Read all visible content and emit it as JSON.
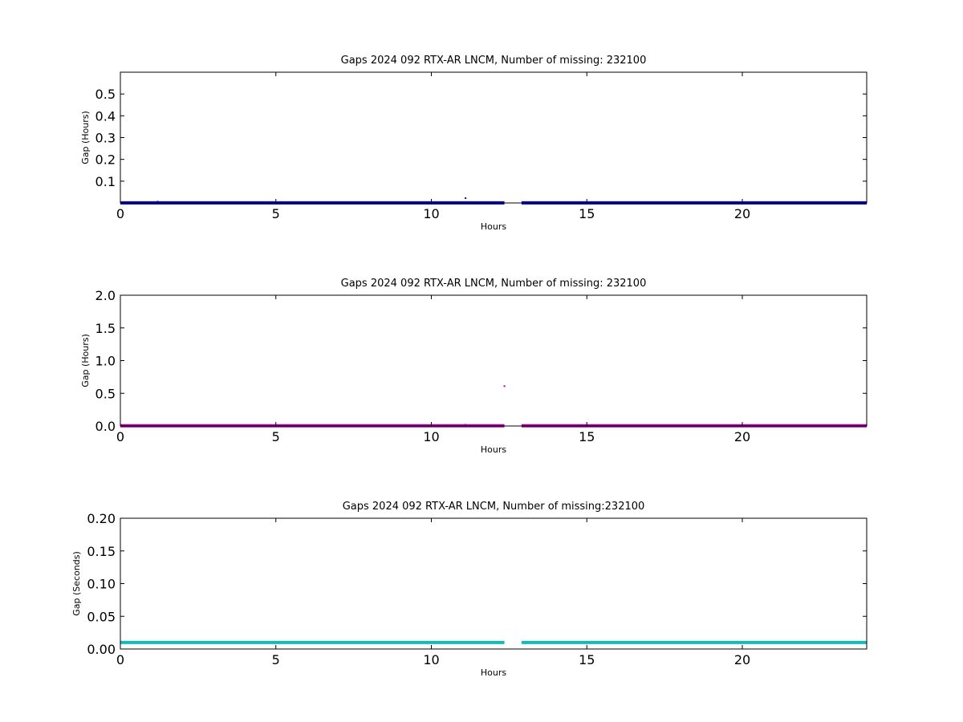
{
  "chart_data": [
    {
      "type": "scatter",
      "title": "Gaps 2024 092 RTX-AR  LNCM, Number of missing: 232100",
      "xlabel": "Hours",
      "ylabel": "Gap (Hours)",
      "xlim": [
        0,
        24
      ],
      "ylim": [
        0,
        0.6
      ],
      "xticks": [
        0,
        5,
        10,
        15,
        20
      ],
      "xtick_labels": [
        "0",
        "5",
        "10",
        "15",
        "20"
      ],
      "yticks": [
        0.1,
        0.2,
        0.3,
        0.4,
        0.5
      ],
      "ytick_labels": [
        "0.1",
        "0.2",
        "0.3",
        "0.4",
        "0.5"
      ],
      "grid": false,
      "series": [
        {
          "color": "#0000cc",
          "segments": [
            {
              "x": [
                0,
                12.35
              ],
              "y": 0.0003
            },
            {
              "x": [
                12.9,
                24
              ],
              "y": 0.0003
            }
          ],
          "points": [
            {
              "x": 1.2,
              "y": 0.006
            },
            {
              "x": 11.1,
              "y": 0.022
            }
          ]
        }
      ]
    },
    {
      "type": "scatter",
      "title": "Gaps 2024 092 RTX-AR  LNCM, Number of missing: 232100",
      "xlabel": "Hours",
      "ylabel": "Gap (Hours)",
      "xlim": [
        0,
        24
      ],
      "ylim": [
        0,
        2.0
      ],
      "xticks": [
        0,
        5,
        10,
        15,
        20
      ],
      "xtick_labels": [
        "0",
        "5",
        "10",
        "15",
        "20"
      ],
      "yticks": [
        0,
        0.5,
        1.0,
        1.5,
        2.0
      ],
      "ytick_labels": [
        "0.0",
        "0.5",
        "1.0",
        "1.5",
        "2.0"
      ],
      "grid": false,
      "series": [
        {
          "color": "#aa00aa",
          "segments": [
            {
              "x": [
                0,
                12.35
              ],
              "y": 0.003
            },
            {
              "x": [
                12.9,
                24
              ],
              "y": 0.003
            }
          ],
          "points": [
            {
              "x": 12.35,
              "y": 0.61
            },
            {
              "x": 11.1,
              "y": 0.02
            }
          ]
        }
      ]
    },
    {
      "type": "scatter",
      "title": "Gaps 2024 092 RTX-AR  LNCM, Number of missing:232100",
      "xlabel": "Hours",
      "ylabel": "Gap (Seconds)",
      "xlim": [
        0,
        24
      ],
      "ylim": [
        0,
        0.2
      ],
      "xticks": [
        0,
        5,
        10,
        15,
        20
      ],
      "xtick_labels": [
        "0",
        "5",
        "10",
        "15",
        "20"
      ],
      "yticks": [
        0,
        0.05,
        0.1,
        0.15,
        0.2
      ],
      "ytick_labels": [
        "0.00",
        "0.05",
        "0.10",
        "0.15",
        "0.20"
      ],
      "grid": false,
      "series": [
        {
          "color": "#11bbbb",
          "segments": [
            {
              "x": [
                0,
                12.35
              ],
              "y": 0.01
            },
            {
              "x": [
                12.9,
                24
              ],
              "y": 0.01
            }
          ],
          "points": []
        }
      ]
    }
  ]
}
